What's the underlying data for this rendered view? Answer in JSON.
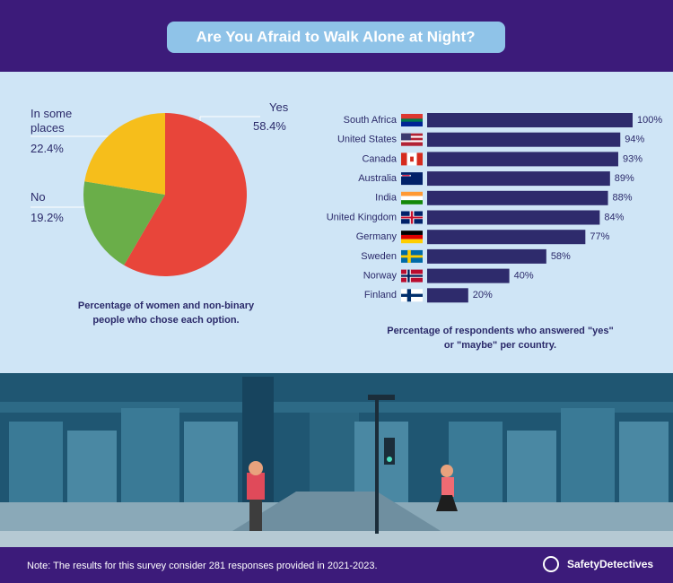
{
  "title": "Are You Afraid to Walk Alone at Night?",
  "chart_data": [
    {
      "type": "pie",
      "categories": [
        "Yes",
        "No",
        "In some places"
      ],
      "values": [
        58.4,
        19.2,
        22.4
      ],
      "value_labels": [
        "58.4%",
        "19.2%",
        "22.4%"
      ],
      "colors": [
        "#e8453a",
        "#6aae49",
        "#f6be1b"
      ],
      "caption": "Percentage of women and non-binary people who chose each option."
    },
    {
      "type": "hbar",
      "categories": [
        "South Africa",
        "United States",
        "Canada",
        "Australia",
        "India",
        "United Kingdom",
        "Germany",
        "Sweden",
        "Norway",
        "Finland"
      ],
      "values": [
        100,
        94,
        93,
        89,
        88,
        84,
        77,
        58,
        40,
        20
      ],
      "value_labels": [
        "100%",
        "94%",
        "93%",
        "89%",
        "88%",
        "84%",
        "77%",
        "58%",
        "40%",
        "20%"
      ],
      "color": "#2e2b6c",
      "caption": "Percentage of respondents who answered \"yes\" or \"maybe\" per country."
    }
  ],
  "note": "Note: The results for this survey consider 281 responses provided in 2021-2023.",
  "brand": "SafetyDetectives"
}
